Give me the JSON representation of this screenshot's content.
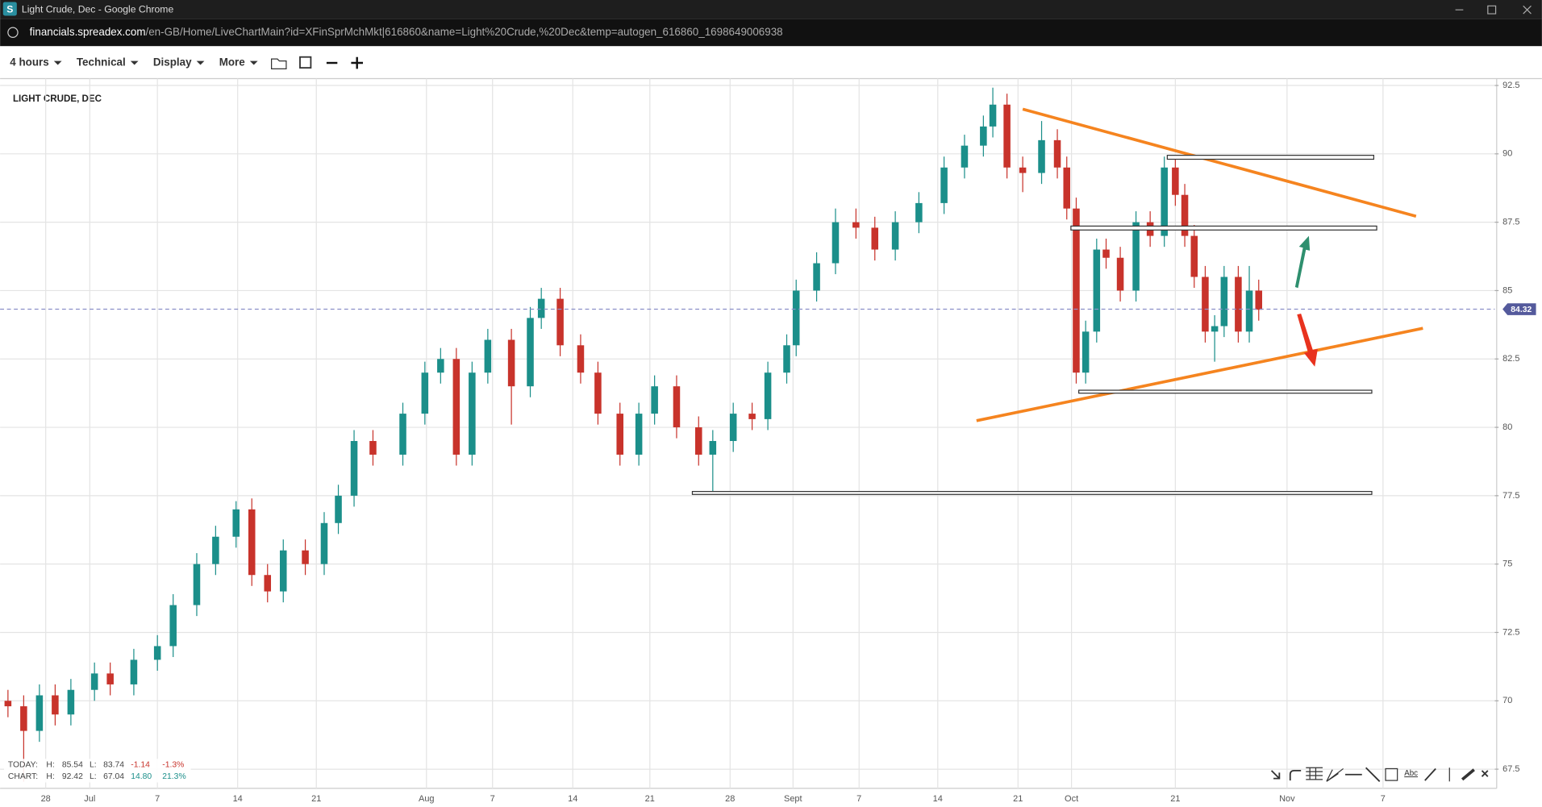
{
  "window": {
    "title": "Light Crude, Dec - Google Chrome",
    "url_host": "financials.spreadex.com",
    "url_path": "/en-GB/Home/LiveChartMain?id=XFinSprMchMkt|616860&name=Light%20Crude,%20Dec&temp=autogen_616860_1698649006938"
  },
  "toolbar": {
    "items": [
      "4 hours",
      "Technical",
      "Display",
      "More"
    ],
    "text_tool": "Abc"
  },
  "stats": {
    "today": [
      "TODAY:",
      "H:",
      "85.54",
      "L:",
      "83.74",
      "-1.14",
      "-1.3%"
    ],
    "chart": [
      "CHART:",
      "H:",
      "92.42",
      "L:",
      "67.04",
      "14.80",
      "21.3%"
    ]
  },
  "chart_data": {
    "type": "candlestick",
    "title": "LIGHT CRUDE, DEC",
    "x": [
      0.5,
      1.5,
      2.5,
      3.5,
      4.5,
      6,
      7,
      8.5,
      10,
      11,
      12.5,
      13.7,
      15,
      16,
      17,
      18,
      19.4,
      20.6,
      21.5,
      22.5,
      23.7,
      25.6,
      27,
      28,
      29,
      30,
      31,
      32.5,
      33.7,
      34.4,
      35.6,
      36.9,
      38,
      39.4,
      40.6,
      41.6,
      43,
      44.4,
      45.3,
      46.6,
      47.8,
      48.8,
      50,
      50.6,
      51.9,
      53.1,
      54.4,
      55.6,
      56.9,
      58.4,
      60,
      61.3,
      62.5,
      63.1,
      64,
      65,
      66.2,
      67.2,
      67.8,
      68.4,
      69,
      69.7,
      70.3,
      71.2,
      72.2,
      73.1,
      74,
      74.7,
      75.3,
      75.9,
      76.6,
      77.2,
      77.8,
      78.7,
      79.4,
      80
    ],
    "open": [
      70.0,
      69.8,
      68.9,
      70.2,
      69.5,
      70.4,
      71,
      70.6,
      71.5,
      72,
      73.5,
      75,
      76,
      77,
      74.6,
      74,
      75.5,
      75,
      76.5,
      77.5,
      79.5,
      79,
      80.5,
      82,
      82.5,
      79,
      82,
      83.2,
      81.5,
      84,
      84.7,
      83,
      82,
      80.5,
      79,
      80.5,
      81.5,
      80,
      79,
      79.5,
      80.5,
      80.3,
      82,
      83,
      85,
      86,
      87.5,
      87.3,
      86.5,
      87.5,
      88.2,
      89.5,
      90.3,
      91,
      91.8,
      89.5,
      89.3,
      90.5,
      89.5,
      88,
      82,
      83.5,
      86.5,
      86.2,
      85,
      87.5,
      87,
      89.5,
      88.5,
      87,
      85.5,
      83.5,
      83.7,
      85.5,
      83.5,
      85
    ],
    "high": [
      70.4,
      70.2,
      70.6,
      70.6,
      70.8,
      71.4,
      71.4,
      71.9,
      72.4,
      73.9,
      75.4,
      76.4,
      77.3,
      77.4,
      75,
      75.9,
      75.9,
      76.9,
      77.9,
      79.9,
      79.9,
      80.9,
      82.4,
      82.9,
      82.9,
      82.4,
      83.6,
      83.6,
      84.4,
      85.1,
      85.1,
      83.4,
      82.4,
      80.9,
      80.9,
      81.9,
      81.9,
      80.4,
      79.9,
      80.9,
      80.9,
      82.4,
      83.4,
      85.4,
      86.4,
      88,
      88,
      87.7,
      87.9,
      88.6,
      89.9,
      90.7,
      91.4,
      92.42,
      92.2,
      89.9,
      91.2,
      90.9,
      89.9,
      88.4,
      83.9,
      86.9,
      86.9,
      86.6,
      87.9,
      87.9,
      89.9,
      89.9,
      88.9,
      87.4,
      85.9,
      84.1,
      85.9,
      85.9,
      85.9,
      85.4
    ],
    "low": [
      69.4,
      67.04,
      68.5,
      69.1,
      69.1,
      70,
      70.2,
      70.2,
      71.1,
      71.6,
      73.1,
      74.6,
      75.6,
      74.2,
      73.6,
      73.6,
      74.6,
      74.6,
      76.1,
      77.1,
      78.6,
      78.6,
      80.1,
      81.6,
      78.6,
      78.6,
      81.6,
      80.1,
      81.1,
      83.6,
      82.6,
      81.6,
      80.1,
      78.6,
      78.6,
      80.1,
      79.6,
      78.6,
      77.6,
      79.1,
      79.9,
      79.9,
      81.6,
      82.6,
      84.6,
      85.6,
      86.9,
      86.1,
      86.1,
      87.1,
      87.8,
      89.1,
      89.9,
      90.6,
      89.1,
      88.6,
      88.9,
      89.1,
      87.6,
      81.6,
      81.6,
      83.1,
      85.8,
      84.6,
      84.6,
      86.6,
      86.6,
      88.1,
      86.6,
      85.1,
      83.1,
      82.4,
      83.3,
      83.1,
      83.1,
      83.9
    ],
    "close": [
      69.8,
      68.9,
      70.2,
      69.5,
      70.4,
      71,
      70.6,
      71.5,
      72,
      73.5,
      75,
      76,
      77,
      74.6,
      74,
      75.5,
      75,
      76.5,
      77.5,
      79.5,
      79,
      80.5,
      82,
      82.5,
      79,
      82,
      83.2,
      81.5,
      84,
      84.7,
      83,
      82,
      80.5,
      79,
      80.5,
      81.5,
      80,
      79,
      79.5,
      80.5,
      80.3,
      82,
      83,
      85,
      86,
      87.5,
      87.3,
      86.5,
      87.5,
      88.2,
      89.5,
      90.3,
      91,
      91.8,
      89.5,
      89.3,
      90.5,
      89.5,
      88,
      82,
      83.5,
      86.5,
      86.2,
      85,
      87.5,
      87,
      89.5,
      88.5,
      87,
      85.5,
      83.5,
      83.7,
      85.5,
      83.5,
      85,
      84.3
    ],
    "up_color": "#1b8f8a",
    "down_color": "#c8332b",
    "last_price": 84.32,
    "xlim": [
      0,
      95
    ],
    "xticks": [
      {
        "value": 2.9,
        "label": "28"
      },
      {
        "value": 5.7,
        "label": "Jul"
      },
      {
        "value": 10,
        "label": "7"
      },
      {
        "value": 15.1,
        "label": "14"
      },
      {
        "value": 20.1,
        "label": "21"
      },
      {
        "value": 27.1,
        "label": "Aug"
      },
      {
        "value": 31.3,
        "label": "7"
      },
      {
        "value": 36.4,
        "label": "14"
      },
      {
        "value": 41.3,
        "label": "21"
      },
      {
        "value": 46.4,
        "label": "28"
      },
      {
        "value": 50.4,
        "label": "Sept"
      },
      {
        "value": 54.6,
        "label": "7"
      },
      {
        "value": 59.6,
        "label": "14"
      },
      {
        "value": 64.7,
        "label": "21"
      },
      {
        "value": 68.1,
        "label": "Oct"
      },
      {
        "value": 74.7,
        "label": "21"
      },
      {
        "value": 81.8,
        "label": "Nov"
      },
      {
        "value": 87.9,
        "label": "7"
      }
    ],
    "ylim": [
      66.8,
      92.75
    ],
    "yticks": [
      67.5,
      70,
      72.5,
      75,
      77.5,
      80,
      82.5,
      85,
      87.5,
      90,
      92.5
    ],
    "grid": true
  }
}
